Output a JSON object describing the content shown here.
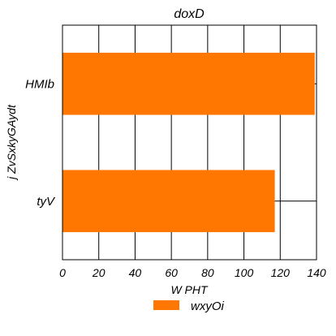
{
  "chart_data": {
    "type": "bar",
    "orientation": "horizontal",
    "title": "doxD",
    "xlabel": "W PHT",
    "ylabel": "j ZvSxkyGAydt",
    "categories": [
      "HMIb",
      "tyV"
    ],
    "series": [
      {
        "name": "wxyOi",
        "values": [
          139,
          117
        ],
        "color": "#ff7700"
      }
    ],
    "xlim": [
      0,
      140
    ],
    "x_ticks": [
      0,
      20,
      40,
      60,
      80,
      100,
      120,
      140
    ],
    "grid": "vertical",
    "legend_position": "bottom-center"
  }
}
